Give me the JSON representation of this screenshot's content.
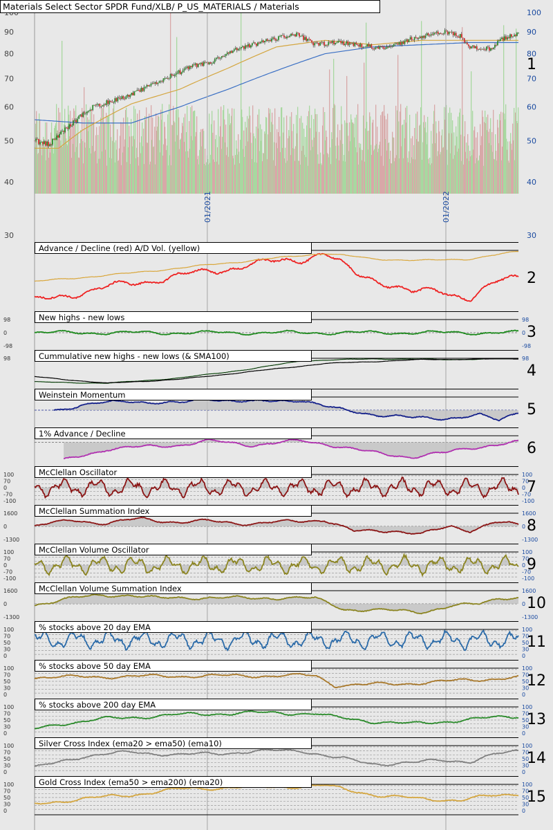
{
  "colors": {
    "background": "#e8e8e8",
    "up_candle": "#2e8b2e",
    "down_candle": "#d23030",
    "ma_short": "#d4a640",
    "ma_long": "#3a6fc4",
    "vol_up": "#a8d8a0",
    "vol_down": "#d8a8a8",
    "ad_line": "#ee2222",
    "ad_vol": "#d9a63a",
    "nhnl": "#1e8a1e",
    "momentum": "#14208a",
    "pct1_ad": "#b030b0",
    "mcclellan": "#8b1414",
    "mcclellan_vol": "#8b8420",
    "ema20": "#2a6aa8",
    "ema50": "#a8782a",
    "ema200": "#2a8a2a",
    "silver": "#808080",
    "gold": "#d4a640",
    "axis_text": "#1a4aa0"
  },
  "chart_data": [
    {
      "id": 1,
      "type": "candlestick",
      "title": "Materials Select Sector SPDR Fund/XLB/ P_US_MATERIALS / Materials",
      "yscale": "log",
      "ylim": [
        30,
        100
      ],
      "yticks": [
        30,
        40,
        50,
        60,
        70,
        80,
        90,
        100
      ],
      "x_labels": [
        "01/2021",
        "01/2022"
      ],
      "x_label_positions": [
        0.357,
        0.85
      ],
      "price_keypoints": [
        [
          0,
          50
        ],
        [
          0.03,
          49
        ],
        [
          0.07,
          54
        ],
        [
          0.12,
          60
        ],
        [
          0.2,
          64
        ],
        [
          0.27,
          70
        ],
        [
          0.33,
          75
        ],
        [
          0.36,
          76
        ],
        [
          0.42,
          82
        ],
        [
          0.5,
          87
        ],
        [
          0.54,
          89
        ],
        [
          0.58,
          84
        ],
        [
          0.63,
          85
        ],
        [
          0.7,
          83
        ],
        [
          0.74,
          83
        ],
        [
          0.78,
          87
        ],
        [
          0.85,
          90
        ],
        [
          0.88,
          88
        ],
        [
          0.9,
          83
        ],
        [
          0.94,
          82
        ],
        [
          0.97,
          87
        ],
        [
          1,
          89
        ]
      ],
      "ma_short_keypoints": [
        [
          0,
          48
        ],
        [
          0.05,
          48
        ],
        [
          0.1,
          53
        ],
        [
          0.2,
          61
        ],
        [
          0.3,
          66
        ],
        [
          0.4,
          74
        ],
        [
          0.5,
          83
        ],
        [
          0.6,
          86
        ],
        [
          0.7,
          84
        ],
        [
          0.8,
          86
        ],
        [
          0.9,
          86
        ],
        [
          1,
          86
        ]
      ],
      "ma_long_keypoints": [
        [
          0,
          56
        ],
        [
          0.1,
          55
        ],
        [
          0.2,
          55
        ],
        [
          0.3,
          60
        ],
        [
          0.4,
          66
        ],
        [
          0.5,
          73
        ],
        [
          0.6,
          80
        ],
        [
          0.7,
          83
        ],
        [
          0.8,
          84
        ],
        [
          0.9,
          85
        ],
        [
          1,
          85
        ]
      ],
      "panel_number": "1"
    },
    {
      "id": 2,
      "type": "line",
      "title": "Advance / Decline (red) A/D Vol. (yellow)",
      "series": [
        {
          "name": "Advance / Decline",
          "color_key": "ad_line",
          "keypoints": [
            [
              0,
              0.1
            ],
            [
              0.15,
              0.35
            ],
            [
              0.3,
              0.55
            ],
            [
              0.45,
              0.75
            ],
            [
              0.55,
              0.85
            ],
            [
              0.6,
              0.95
            ],
            [
              0.66,
              0.6
            ],
            [
              0.72,
              0.45
            ],
            [
              0.78,
              0.25
            ],
            [
              0.84,
              0.3
            ],
            [
              0.9,
              0.15
            ],
            [
              0.96,
              0.45
            ],
            [
              1,
              0.55
            ]
          ]
        },
        {
          "name": "A/D Vol.",
          "color_key": "ad_vol",
          "keypoints": [
            [
              0,
              0.45
            ],
            [
              0.2,
              0.6
            ],
            [
              0.4,
              0.78
            ],
            [
              0.6,
              0.95
            ],
            [
              0.7,
              0.85
            ],
            [
              0.8,
              0.82
            ],
            [
              0.9,
              0.85
            ],
            [
              1,
              0.98
            ]
          ]
        }
      ],
      "panel_number": "2"
    },
    {
      "id": 3,
      "type": "line",
      "title": "New highs - new lows",
      "ylim": [
        -98,
        98
      ],
      "yticks": [
        98,
        0,
        -98
      ],
      "baseline": 0,
      "series": [
        {
          "name": "New highs - new lows",
          "color_key": "nhnl",
          "keypoints": [
            [
              0,
              0.5
            ],
            [
              1,
              0.5
            ]
          ]
        }
      ],
      "panel_number": "3"
    },
    {
      "id": 4,
      "type": "line",
      "title": "Cummulative new highs - new lows (& SMA100)",
      "yticks": [
        98
      ],
      "series": [
        {
          "name": "Cumulative NH-NL",
          "color_key": "nhnl",
          "keypoints": [
            [
              0,
              0.1
            ],
            [
              0.15,
              0.05
            ],
            [
              0.3,
              0.25
            ],
            [
              0.45,
              0.6
            ],
            [
              0.55,
              0.9
            ],
            [
              0.7,
              0.98
            ],
            [
              0.85,
              0.95
            ],
            [
              1,
              0.99
            ]
          ]
        },
        {
          "name": "SMA100",
          "color_key": "black",
          "keypoints": [
            [
              0,
              0.3
            ],
            [
              0.15,
              0.05
            ],
            [
              0.3,
              0.2
            ],
            [
              0.45,
              0.5
            ],
            [
              0.6,
              0.8
            ],
            [
              0.8,
              0.95
            ],
            [
              1,
              0.98
            ]
          ]
        }
      ],
      "panel_number": "4"
    },
    {
      "id": 5,
      "type": "area",
      "title": "Weinstein Momentum",
      "baseline": 0.5,
      "series": [
        {
          "name": "Weinstein Momentum",
          "color_key": "momentum",
          "keypoints": [
            [
              0.04,
              0.5
            ],
            [
              0.1,
              0.7
            ],
            [
              0.2,
              0.85
            ],
            [
              0.3,
              0.75
            ],
            [
              0.36,
              0.95
            ],
            [
              0.45,
              0.8
            ],
            [
              0.55,
              0.9
            ],
            [
              0.62,
              0.55
            ],
            [
              0.7,
              0.35
            ],
            [
              0.78,
              0.2
            ],
            [
              0.85,
              0.2
            ],
            [
              0.92,
              0.3
            ],
            [
              0.96,
              0.1
            ],
            [
              1,
              0.45
            ]
          ]
        }
      ],
      "panel_number": "5"
    },
    {
      "id": 6,
      "type": "area",
      "title": "1% Advance / Decline",
      "baseline": 0.75,
      "series": [
        {
          "name": "1% Advance / Decline",
          "color_key": "pct1_ad",
          "keypoints": [
            [
              0.06,
              0.05
            ],
            [
              0.15,
              0.5
            ],
            [
              0.3,
              0.65
            ],
            [
              0.36,
              0.8
            ],
            [
              0.45,
              0.65
            ],
            [
              0.55,
              0.8
            ],
            [
              0.6,
              0.7
            ],
            [
              0.7,
              0.35
            ],
            [
              0.78,
              0.2
            ],
            [
              0.85,
              0.35
            ],
            [
              0.9,
              0.55
            ],
            [
              0.95,
              0.65
            ],
            [
              1,
              0.75
            ]
          ]
        }
      ],
      "panel_number": "6"
    },
    {
      "id": 7,
      "type": "area",
      "title": "McClellan Oscillator",
      "ylim": [
        -100,
        100
      ],
      "yticks": [
        100,
        70,
        0,
        -70,
        -100
      ],
      "baseline": 0,
      "series": [
        {
          "name": "McClellan Oscillator",
          "color_key": "mcclellan",
          "keypoints": [
            [
              0,
              0.5
            ],
            [
              1,
              0.5
            ]
          ]
        }
      ],
      "panel_number": "7"
    },
    {
      "id": 8,
      "type": "area",
      "title": "McClellan Summation Index",
      "ylim": [
        -1300,
        1600
      ],
      "yticks": [
        1600,
        0,
        -1300
      ],
      "baseline": 0,
      "series": [
        {
          "name": "McClellan Summation Index",
          "color_key": "mcclellan",
          "keypoints": [
            [
              0,
              0.5
            ],
            [
              0.08,
              0.75
            ],
            [
              0.15,
              0.6
            ],
            [
              0.22,
              0.8
            ],
            [
              0.3,
              0.65
            ],
            [
              0.36,
              0.7
            ],
            [
              0.45,
              0.6
            ],
            [
              0.55,
              0.7
            ],
            [
              0.6,
              0.75
            ],
            [
              0.66,
              0.3
            ],
            [
              0.74,
              0.35
            ],
            [
              0.8,
              0.2
            ],
            [
              0.86,
              0.5
            ],
            [
              0.9,
              0.35
            ],
            [
              0.95,
              0.65
            ],
            [
              1,
              0.55
            ]
          ]
        }
      ],
      "panel_number": "8"
    },
    {
      "id": 9,
      "type": "area",
      "title": "McClellan Volume Oscillator",
      "ylim": [
        -100,
        100
      ],
      "yticks": [
        100,
        70,
        0,
        -70,
        -100
      ],
      "baseline": 0,
      "series": [
        {
          "name": "McClellan Volume Oscillator",
          "color_key": "mcclellan_vol",
          "keypoints": [
            [
              0,
              0.5
            ],
            [
              1,
              0.5
            ]
          ]
        }
      ],
      "panel_number": "9"
    },
    {
      "id": 10,
      "type": "area",
      "title": "McClellan Volume Summation Index",
      "ylim": [
        -1300,
        1600
      ],
      "yticks": [
        1600,
        0,
        -1300
      ],
      "baseline": 0,
      "series": [
        {
          "name": "McClellan Volume Summation Index",
          "color_key": "mcclellan_vol",
          "keypoints": [
            [
              0,
              0.45
            ],
            [
              0.06,
              0.7
            ],
            [
              0.14,
              0.8
            ],
            [
              0.2,
              0.85
            ],
            [
              0.26,
              0.7
            ],
            [
              0.36,
              0.75
            ],
            [
              0.45,
              0.7
            ],
            [
              0.52,
              0.75
            ],
            [
              0.58,
              0.7
            ],
            [
              0.64,
              0.3
            ],
            [
              0.72,
              0.25
            ],
            [
              0.8,
              0.2
            ],
            [
              0.86,
              0.4
            ],
            [
              0.92,
              0.5
            ],
            [
              0.96,
              0.75
            ],
            [
              1,
              0.72
            ]
          ]
        }
      ],
      "panel_number": "10"
    },
    {
      "id": 11,
      "type": "line",
      "title": "% stocks above 20 day EMA",
      "ylim": [
        0,
        100
      ],
      "yticks": [
        100,
        70,
        50,
        30,
        0
      ],
      "series": [
        {
          "name": "% above 20 day EMA",
          "color_key": "ema20",
          "keypoints": [
            [
              0,
              0.6
            ],
            [
              1,
              0.6
            ]
          ]
        }
      ],
      "panel_number": "11"
    },
    {
      "id": 12,
      "type": "line",
      "title": "% stocks above 50 day EMA",
      "ylim": [
        0,
        100
      ],
      "yticks": [
        100,
        70,
        50,
        30,
        0
      ],
      "series": [
        {
          "name": "% above 50 day EMA",
          "color_key": "ema50",
          "keypoints": [
            [
              0,
              0.65
            ],
            [
              0.3,
              0.7
            ],
            [
              0.58,
              0.72
            ],
            [
              0.62,
              0.35
            ],
            [
              0.75,
              0.4
            ],
            [
              0.85,
              0.5
            ],
            [
              1,
              0.65
            ]
          ]
        }
      ],
      "panel_number": "12"
    },
    {
      "id": 13,
      "type": "line",
      "title": "% stocks above 200 day EMA",
      "ylim": [
        0,
        100
      ],
      "yticks": [
        100,
        70,
        50,
        30,
        0
      ],
      "series": [
        {
          "name": "% above 200 day EMA",
          "color_key": "ema200",
          "keypoints": [
            [
              0,
              0.15
            ],
            [
              0.05,
              0.35
            ],
            [
              0.15,
              0.55
            ],
            [
              0.3,
              0.7
            ],
            [
              0.45,
              0.78
            ],
            [
              0.58,
              0.75
            ],
            [
              0.62,
              0.6
            ],
            [
              0.7,
              0.45
            ],
            [
              0.78,
              0.35
            ],
            [
              0.85,
              0.45
            ],
            [
              0.92,
              0.55
            ],
            [
              1,
              0.65
            ]
          ]
        }
      ],
      "panel_number": "13"
    },
    {
      "id": 14,
      "type": "line",
      "title": "Silver Cross Index (ema20 > ema50) (ema10)",
      "ylim": [
        0,
        100
      ],
      "yticks": [
        100,
        70,
        50,
        30,
        0
      ],
      "series": [
        {
          "name": "Silver Cross Index",
          "color_key": "silver",
          "keypoints": [
            [
              0,
              0.15
            ],
            [
              0.1,
              0.6
            ],
            [
              0.2,
              0.75
            ],
            [
              0.3,
              0.65
            ],
            [
              0.38,
              0.7
            ],
            [
              0.45,
              0.78
            ],
            [
              0.55,
              0.82
            ],
            [
              0.62,
              0.55
            ],
            [
              0.7,
              0.3
            ],
            [
              0.78,
              0.35
            ],
            [
              0.85,
              0.45
            ],
            [
              0.9,
              0.4
            ],
            [
              0.95,
              0.65
            ],
            [
              1,
              0.8
            ]
          ]
        }
      ],
      "panel_number": "14"
    },
    {
      "id": 15,
      "type": "line",
      "title": "Gold Cross Index (ema50 > ema200) (ema20)",
      "ylim": [
        0,
        100
      ],
      "yticks": [
        100,
        70,
        50,
        30,
        0
      ],
      "series": [
        {
          "name": "Gold Cross Index",
          "color_key": "gold",
          "keypoints": [
            [
              0,
              0.25
            ],
            [
              0.1,
              0.45
            ],
            [
              0.2,
              0.6
            ],
            [
              0.3,
              0.82
            ],
            [
              0.4,
              0.88
            ],
            [
              0.5,
              0.9
            ],
            [
              0.6,
              0.95
            ],
            [
              0.66,
              0.75
            ],
            [
              0.72,
              0.55
            ],
            [
              0.8,
              0.45
            ],
            [
              0.88,
              0.4
            ],
            [
              0.94,
              0.55
            ],
            [
              1,
              0.65
            ]
          ]
        }
      ],
      "panel_number": "15"
    }
  ]
}
